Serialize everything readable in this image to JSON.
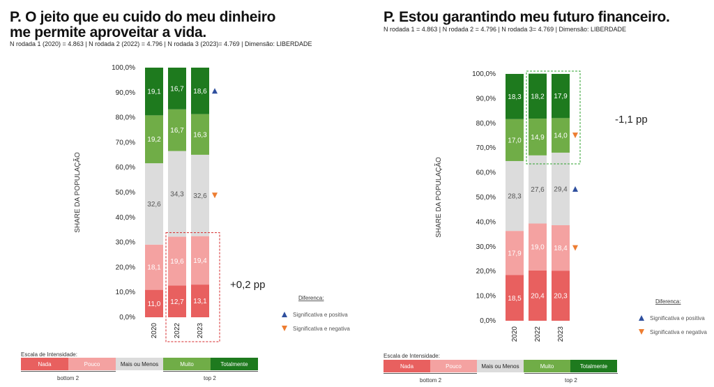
{
  "colors": {
    "nada": "#e8605f",
    "pouco": "#f4a2a1",
    "mais_ou_menos": "#dcdcdc",
    "muito": "#70ad47",
    "totalmente": "#1e7a1e",
    "pos": "#2f4f9e",
    "neg": "#ed7d31",
    "box_red": "#d62728",
    "box_green": "#2ca02c"
  },
  "scale": {
    "title": "Escala de Intensidade:",
    "items": [
      "Nada",
      "Pouco",
      "Mais ou Menos",
      "Muito",
      "Totalmente"
    ],
    "bottom_label": "bottom 2",
    "top_label": "top 2"
  },
  "legend": {
    "title": "Diferenca:",
    "positive": "Significativa e positiva",
    "negative": "Significativa e negativa"
  },
  "panels": [
    {
      "title_line1": "P. O jeito que eu cuido do meu dinheiro",
      "title_line2": "me permite aproveitar a vida.",
      "subtitle": "N rodada 1 (2020) = 4.863  | N rodada 2 (2022) = 4.796 | N rodada 3 (2023)= 4.769 | Dimensão: LIBERDADE",
      "annotation": "+0,2 pp"
    },
    {
      "title_line1": "P. Estou garantindo meu futuro financeiro.",
      "title_line2": "",
      "subtitle": "N rodada 1 = 4.863  | N rodada 2 = 4.796 | N rodada 3= 4.769 | Dimensão: LIBERDADE",
      "annotation": "-1,1 pp"
    }
  ],
  "chart_data": [
    {
      "type": "bar",
      "stacked": true,
      "ylabel": "SHARE DA POPULAÇÃO",
      "ylim": [
        0,
        100
      ],
      "yticks": [
        "0,0%",
        "10,0%",
        "20,0%",
        "30,0%",
        "40,0%",
        "50,0%",
        "60,0%",
        "70,0%",
        "80,0%",
        "90,0%",
        "100,0%"
      ],
      "categories": [
        "2020",
        "2022",
        "2023"
      ],
      "series": [
        {
          "name": "Nada",
          "values": [
            11.0,
            12.7,
            13.1
          ],
          "labels": [
            "11,0",
            "12,7",
            "13,1"
          ]
        },
        {
          "name": "Pouco",
          "values": [
            18.1,
            19.6,
            19.4
          ],
          "labels": [
            "18,1",
            "19,6",
            "19,4"
          ]
        },
        {
          "name": "Mais ou Menos",
          "values": [
            32.6,
            34.3,
            32.6
          ],
          "labels": [
            "32,6",
            "34,3",
            "32,6"
          ]
        },
        {
          "name": "Muito",
          "values": [
            19.2,
            16.7,
            16.3
          ],
          "labels": [
            "19,2",
            "16,7",
            "16,3"
          ]
        },
        {
          "name": "Totalmente",
          "values": [
            19.1,
            16.7,
            18.6
          ],
          "labels": [
            "19,1",
            "16,7",
            "18,6"
          ]
        }
      ],
      "markers": [
        {
          "category": "2023",
          "series": "Totalmente",
          "direction": "positive"
        },
        {
          "category": "2023",
          "series": "Mais ou Menos",
          "direction": "negative"
        }
      ],
      "highlight": {
        "group": "bottom",
        "categories": [
          "2022",
          "2023"
        ],
        "color": "red"
      }
    },
    {
      "type": "bar",
      "stacked": true,
      "ylabel": "SHARE DA POPULAÇÃO",
      "ylim": [
        0,
        100
      ],
      "yticks": [
        "0,0%",
        "10,0%",
        "20,0%",
        "30,0%",
        "40,0%",
        "50,0%",
        "60,0%",
        "70,0%",
        "80,0%",
        "90,0%",
        "100,0%"
      ],
      "categories": [
        "2020",
        "2022",
        "2023"
      ],
      "series": [
        {
          "name": "Nada",
          "values": [
            18.5,
            20.4,
            20.3
          ],
          "labels": [
            "18,5",
            "20,4",
            "20,3"
          ]
        },
        {
          "name": "Pouco",
          "values": [
            17.9,
            19.0,
            18.4
          ],
          "labels": [
            "17,9",
            "19,0",
            "18,4"
          ]
        },
        {
          "name": "Mais ou Menos",
          "values": [
            28.3,
            27.6,
            29.4
          ],
          "labels": [
            "28,3",
            "27,6",
            "29,4"
          ]
        },
        {
          "name": "Muito",
          "values": [
            17.0,
            14.9,
            14.0
          ],
          "labels": [
            "17,0",
            "14,9",
            "14,0"
          ]
        },
        {
          "name": "Totalmente",
          "values": [
            18.3,
            18.2,
            17.9
          ],
          "labels": [
            "18,3",
            "18,2",
            "17,9"
          ]
        }
      ],
      "markers": [
        {
          "category": "2023",
          "series": "Muito",
          "direction": "negative"
        },
        {
          "category": "2023",
          "series": "Mais ou Menos",
          "direction": "positive"
        },
        {
          "category": "2023",
          "series": "Pouco",
          "direction": "negative"
        }
      ],
      "highlight": {
        "group": "top",
        "categories": [
          "2022",
          "2023"
        ],
        "color": "green"
      }
    }
  ]
}
